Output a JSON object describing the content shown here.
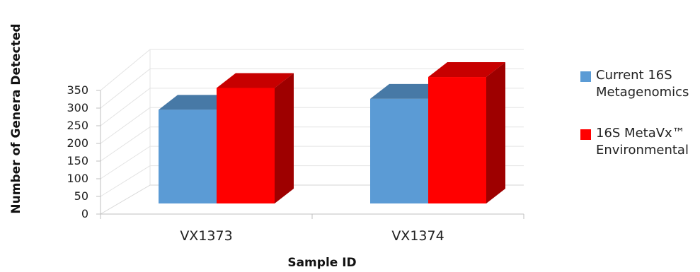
{
  "chart_data": {
    "type": "bar",
    "style": "3d-clustered-column",
    "categories": [
      "VX1373",
      "VX1374"
    ],
    "series": [
      {
        "name": "Current 16S Metagenomics",
        "color": "#5b9bd5",
        "values": [
          258,
          288
        ]
      },
      {
        "name": "16S MetaVx™ Environmental",
        "color": "#ff0000",
        "values": [
          318,
          348
        ]
      }
    ],
    "xlabel": "Sample ID",
    "ylabel": "Number of Genera Detected",
    "ylim": [
      0,
      350
    ],
    "yticks": [
      0,
      50,
      100,
      150,
      200,
      250,
      300,
      350
    ],
    "grid": true,
    "legend_position": "right"
  }
}
